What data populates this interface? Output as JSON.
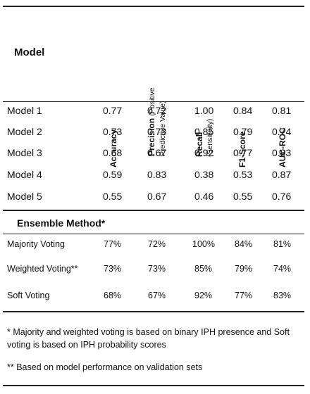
{
  "header": {
    "model": "Model",
    "accuracy": "Accuracy",
    "precision_bold": "Precision",
    "precision_small": "(Positive Predictive Value)",
    "recall_bold": "Recall",
    "recall_small": "(Sensitivity)",
    "f1": "F1-Score",
    "auc": "AUC-ROC"
  },
  "models": [
    {
      "name": "Model 1",
      "accuracy": "0.77",
      "precision": "0.72",
      "recall": "1.00",
      "f1": "0.84",
      "auc": "0.81"
    },
    {
      "name": "Model 2",
      "accuracy": "0.73",
      "precision": "0.73",
      "recall": "0.85",
      "f1": "0.79",
      "auc": "0.74"
    },
    {
      "name": "Model 3",
      "accuracy": "0.68",
      "precision": "0.67",
      "recall": "0.92",
      "f1": "0.77",
      "auc": "0.83"
    },
    {
      "name": "Model 4",
      "accuracy": "0.59",
      "precision": "0.83",
      "recall": "0.38",
      "f1": "0.53",
      "auc": "0.87"
    },
    {
      "name": "Model 5",
      "accuracy": "0.55",
      "precision": "0.67",
      "recall": "0.46",
      "f1": "0.55",
      "auc": "0.76"
    }
  ],
  "ensemble_title": "Ensemble Method*",
  "ensemble": [
    {
      "name": "Majority Voting",
      "accuracy": "77%",
      "precision": "72%",
      "recall": "100%",
      "f1": "84%",
      "auc": "81%"
    },
    {
      "name": "Weighted Voting**",
      "accuracy": "73%",
      "precision": "73%",
      "recall": "85%",
      "f1": "79%",
      "auc": "74%"
    },
    {
      "name": "Soft Voting",
      "accuracy": "68%",
      "precision": "67%",
      "recall": "92%",
      "f1": "77%",
      "auc": "83%"
    }
  ],
  "footnotes": {
    "note1": "* Majority and weighted voting is based on binary IPH presence and Soft voting is based on IPH probability scores",
    "note2": "** Based on model performance on validation sets"
  }
}
